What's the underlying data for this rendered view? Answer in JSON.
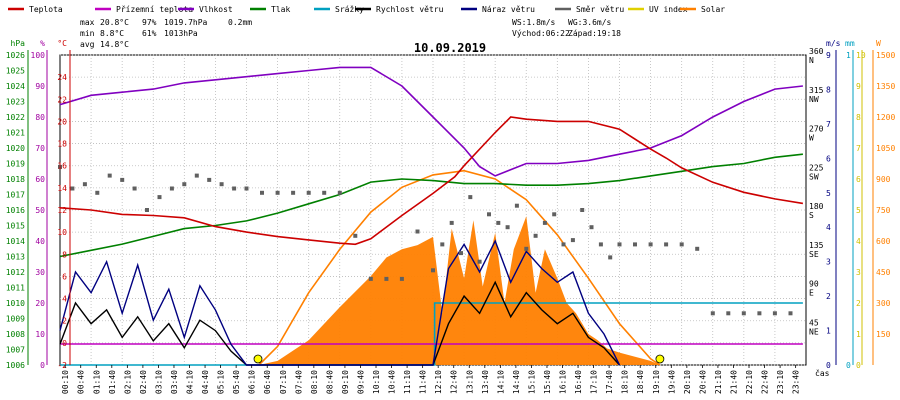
{
  "chart_data": {
    "type": "line",
    "title": "10.09.2019",
    "xlabel": "čas",
    "x_ticks": [
      "00:10",
      "00:40",
      "01:10",
      "01:40",
      "02:10",
      "02:40",
      "03:10",
      "03:40",
      "04:10",
      "04:40",
      "05:10",
      "05:40",
      "06:10",
      "06:40",
      "07:10",
      "07:40",
      "08:10",
      "08:40",
      "09:10",
      "09:40",
      "10:10",
      "10:40",
      "11:10",
      "11:40",
      "12:10",
      "12:40",
      "13:10",
      "13:40",
      "14:10",
      "14:40",
      "15:10",
      "15:40",
      "16:10",
      "16:40",
      "17:10",
      "17:40",
      "18:10",
      "18:40",
      "19:10",
      "19:40",
      "20:10",
      "20:40",
      "21:10",
      "21:40",
      "22:10",
      "22:40",
      "23:10",
      "23:40"
    ],
    "axes": {
      "hpa": {
        "unit": "hPa",
        "color": "#008000",
        "range": [
          1006,
          1026
        ],
        "ticks": [
          1006,
          1007,
          1008,
          1009,
          1010,
          1011,
          1012,
          1013,
          1014,
          1015,
          1016,
          1017,
          1018,
          1019,
          1020,
          1021,
          1022,
          1023,
          1024,
          1025,
          1026
        ]
      },
      "pct": {
        "unit": "%",
        "color": "#a000a0",
        "range": [
          0,
          100
        ],
        "ticks": [
          0,
          10,
          20,
          30,
          40,
          50,
          60,
          70,
          80,
          90,
          100
        ]
      },
      "temp": {
        "unit": "°C",
        "color": "#cc0000",
        "range": [
          -2,
          26
        ],
        "ticks": [
          -2,
          0,
          2,
          4,
          6,
          8,
          10,
          12,
          14,
          16,
          18,
          20,
          22,
          24
        ]
      },
      "deg": {
        "unit": "",
        "color": "#000000",
        "range": [
          0,
          360
        ],
        "ticks": [
          45,
          90,
          135,
          180,
          225,
          270,
          315,
          360
        ],
        "compass": [
          "NE",
          "E",
          "SE",
          "S",
          "SW",
          "W",
          "NW",
          "N"
        ]
      },
      "ms": {
        "unit": "m/s",
        "color": "#000080",
        "range": [
          0,
          9
        ],
        "ticks": [
          0,
          1,
          2,
          3,
          4,
          5,
          6,
          7,
          8,
          9
        ]
      },
      "mm": {
        "unit": "mm",
        "color": "#00a0c0",
        "range": [
          0,
          1
        ],
        "ticks": [
          0,
          1
        ]
      },
      "uv": {
        "unit": "",
        "color": "#d0c000",
        "range": [
          0,
          10
        ],
        "ticks": [
          0,
          1,
          2,
          3,
          4,
          5,
          6,
          7,
          8,
          9,
          10
        ]
      },
      "wm2": {
        "unit": "W",
        "color": "#ff8000",
        "range": [
          0,
          1500
        ],
        "ticks": [
          0,
          150,
          300,
          450,
          600,
          750,
          900,
          1050,
          1200,
          1350,
          1500
        ]
      }
    },
    "legend": [
      {
        "name": "Teplota",
        "color": "#cc0000"
      },
      {
        "name": "Přízemní teplota",
        "color": "#c000c0"
      },
      {
        "name": "Vlhkost",
        "color": "#8000c0"
      },
      {
        "name": "Tlak",
        "color": "#008000"
      },
      {
        "name": "Srážky",
        "color": "#00a0c0"
      },
      {
        "name": "Rychlost větru",
        "color": "#000000"
      },
      {
        "name": "Náraz větru",
        "color": "#000080"
      },
      {
        "name": "Směr větru",
        "color": "#606060"
      },
      {
        "name": "UV index",
        "color": "#e0d000"
      },
      {
        "name": "Solar",
        "color": "#ff8000"
      }
    ],
    "stats": {
      "max": {
        "label": "max",
        "temp": "20.8°C",
        "hum": "97%",
        "press": "1019.7hPa",
        "rain": "0.2mm"
      },
      "min": {
        "label": "min",
        "temp": "8.8°C",
        "hum": "61%",
        "press": "1013hPa"
      },
      "avg": {
        "label": "avg",
        "temp": "14.8°C"
      },
      "ws": "WS:1.8m/s",
      "wg": "WG:3.6m/s",
      "sunrise": "Východ:06:22",
      "sunset": "Západ:19:18"
    },
    "series": [
      {
        "name": "Teplota",
        "axis": "temp",
        "color": "#cc0000",
        "x": [
          0,
          1,
          2,
          3,
          4,
          5,
          6,
          7,
          8,
          9,
          9.5,
          10,
          11,
          12,
          12.7,
          13,
          14,
          14.5,
          15,
          16,
          17,
          18,
          19,
          19.5,
          20,
          21,
          22,
          23,
          23.9
        ],
        "y": [
          12.2,
          12,
          11.6,
          11.5,
          11.3,
          10.5,
          10,
          9.6,
          9.3,
          9,
          8.9,
          9.4,
          11.5,
          13.5,
          15,
          16,
          19,
          20.4,
          20.2,
          20,
          20,
          19.3,
          17.5,
          16.7,
          15.8,
          14.5,
          13.6,
          13,
          12.6
        ]
      },
      {
        "name": "Vlhkost",
        "axis": "pct",
        "color": "#8000c0",
        "x": [
          0,
          1,
          2,
          3,
          4,
          5,
          6,
          7,
          8,
          9,
          10,
          11,
          12,
          13,
          13.5,
          14,
          15,
          16,
          17,
          18,
          19,
          20,
          21,
          22,
          23,
          23.9
        ],
        "y": [
          84,
          87,
          88,
          89,
          91,
          92,
          93,
          94,
          95,
          96,
          96,
          90,
          80,
          70,
          64,
          61,
          65,
          65,
          66,
          68,
          70,
          74,
          80,
          85,
          89,
          90
        ]
      },
      {
        "name": "Tlak",
        "axis": "hpa",
        "color": "#008000",
        "x": [
          0,
          1,
          2,
          3,
          4,
          5,
          6,
          7,
          8,
          9,
          10,
          11,
          12,
          13,
          14,
          15,
          16,
          17,
          18,
          19,
          20,
          21,
          22,
          23,
          23.9
        ],
        "y": [
          1013,
          1013.4,
          1013.8,
          1014.3,
          1014.8,
          1015,
          1015.3,
          1015.8,
          1016.4,
          1017,
          1017.8,
          1018,
          1017.9,
          1017.7,
          1017.7,
          1017.6,
          1017.6,
          1017.7,
          1017.9,
          1018.2,
          1018.5,
          1018.8,
          1019,
          1019.4,
          1019.6
        ]
      },
      {
        "name": "Přízemní teplota",
        "axis": "temp",
        "color": "#c000c0",
        "x": [
          0,
          23.9
        ],
        "y": [
          -0.1,
          -0.1
        ]
      },
      {
        "name": "Srážky",
        "axis": "mm",
        "color": "#00a0c0",
        "step": true,
        "x": [
          0,
          12,
          12.05,
          23.9
        ],
        "y": [
          0,
          0,
          0.2,
          0.2
        ]
      },
      {
        "name": "Solar",
        "axis": "wm2",
        "color": "#ff8000",
        "fill": true,
        "x": [
          6.4,
          7,
          8,
          9,
          10,
          10.5,
          11,
          11.5,
          12,
          12.3,
          12.6,
          13,
          13.3,
          13.6,
          14,
          14.3,
          14.6,
          15,
          15.3,
          15.6,
          16,
          16.3,
          16.6,
          17,
          17.3,
          17.6,
          18,
          18.5,
          19,
          19.3
        ],
        "y": [
          0,
          20,
          120,
          280,
          430,
          520,
          560,
          580,
          620,
          250,
          660,
          420,
          700,
          380,
          640,
          300,
          560,
          720,
          350,
          560,
          420,
          300,
          250,
          150,
          120,
          80,
          60,
          40,
          20,
          0
        ]
      },
      {
        "name": "Solar max",
        "axis": "wm2",
        "color": "#ff8000",
        "x": [
          6.4,
          7,
          8,
          9,
          10,
          11,
          12,
          13,
          14,
          15,
          16,
          17,
          18,
          19,
          19.3
        ],
        "y": [
          0,
          90,
          350,
          560,
          740,
          860,
          920,
          940,
          900,
          800,
          630,
          420,
          200,
          30,
          0
        ]
      },
      {
        "name": "Rychlost větru",
        "axis": "ms",
        "color": "#000000",
        "x": [
          0,
          0.5,
          1,
          1.5,
          2,
          2.5,
          3,
          3.5,
          4,
          4.5,
          5,
          5.5,
          6,
          12,
          12.5,
          13,
          13.5,
          14,
          14.5,
          15,
          15.5,
          16,
          16.5,
          17,
          17.5,
          18
        ],
        "y": [
          0.6,
          1.8,
          1.2,
          1.6,
          0.8,
          1.4,
          0.7,
          1.2,
          0.5,
          1.3,
          1,
          0.4,
          0,
          0,
          1.2,
          2,
          1.5,
          2.4,
          1.4,
          2.1,
          1.6,
          1.2,
          1.5,
          0.8,
          0.5,
          0
        ]
      },
      {
        "name": "Náraz větru",
        "axis": "ms",
        "color": "#000080",
        "x": [
          0,
          0.5,
          1,
          1.5,
          2,
          2.5,
          3,
          3.5,
          4,
          4.5,
          5,
          5.5,
          6,
          12,
          12.5,
          13,
          13.5,
          14,
          14.5,
          15,
          15.5,
          16,
          16.5,
          17,
          17.5,
          18
        ],
        "y": [
          1,
          2.7,
          2.1,
          3,
          1.5,
          2.9,
          1.3,
          2.2,
          0.8,
          2.3,
          1.6,
          0.6,
          0,
          0,
          2.8,
          3.5,
          2.7,
          3.6,
          2.4,
          3.3,
          2.8,
          2.4,
          2.7,
          1.5,
          0.9,
          0
        ]
      }
    ],
    "wind_dir": {
      "axis": "deg",
      "color": "#606060",
      "x": [
        0,
        0.4,
        0.8,
        1.2,
        1.6,
        2,
        2.4,
        2.8,
        3.2,
        3.6,
        4,
        4.4,
        4.8,
        5.2,
        5.6,
        6,
        6.5,
        7,
        7.5,
        8,
        8.5,
        9,
        9.5,
        10,
        10.5,
        11,
        11.5,
        12,
        12.3,
        12.6,
        12.9,
        13.2,
        13.5,
        13.8,
        14.1,
        14.4,
        14.7,
        15,
        15.3,
        15.6,
        15.9,
        16.2,
        16.5,
        16.8,
        17.1,
        17.4,
        17.7,
        18,
        18.5,
        19,
        19.5,
        20,
        20.5,
        21,
        21.5,
        22,
        22.5,
        23,
        23.5
      ],
      "y": [
        230,
        205,
        210,
        200,
        220,
        215,
        205,
        180,
        195,
        205,
        210,
        220,
        215,
        210,
        205,
        205,
        200,
        200,
        200,
        200,
        200,
        200,
        150,
        100,
        100,
        100,
        155,
        110,
        140,
        165,
        130,
        195,
        120,
        175,
        165,
        160,
        185,
        135,
        150,
        165,
        175,
        140,
        145,
        180,
        160,
        140,
        125,
        140,
        140,
        140,
        140,
        140,
        135,
        60,
        60,
        60,
        60,
        60,
        60
      ]
    }
  }
}
